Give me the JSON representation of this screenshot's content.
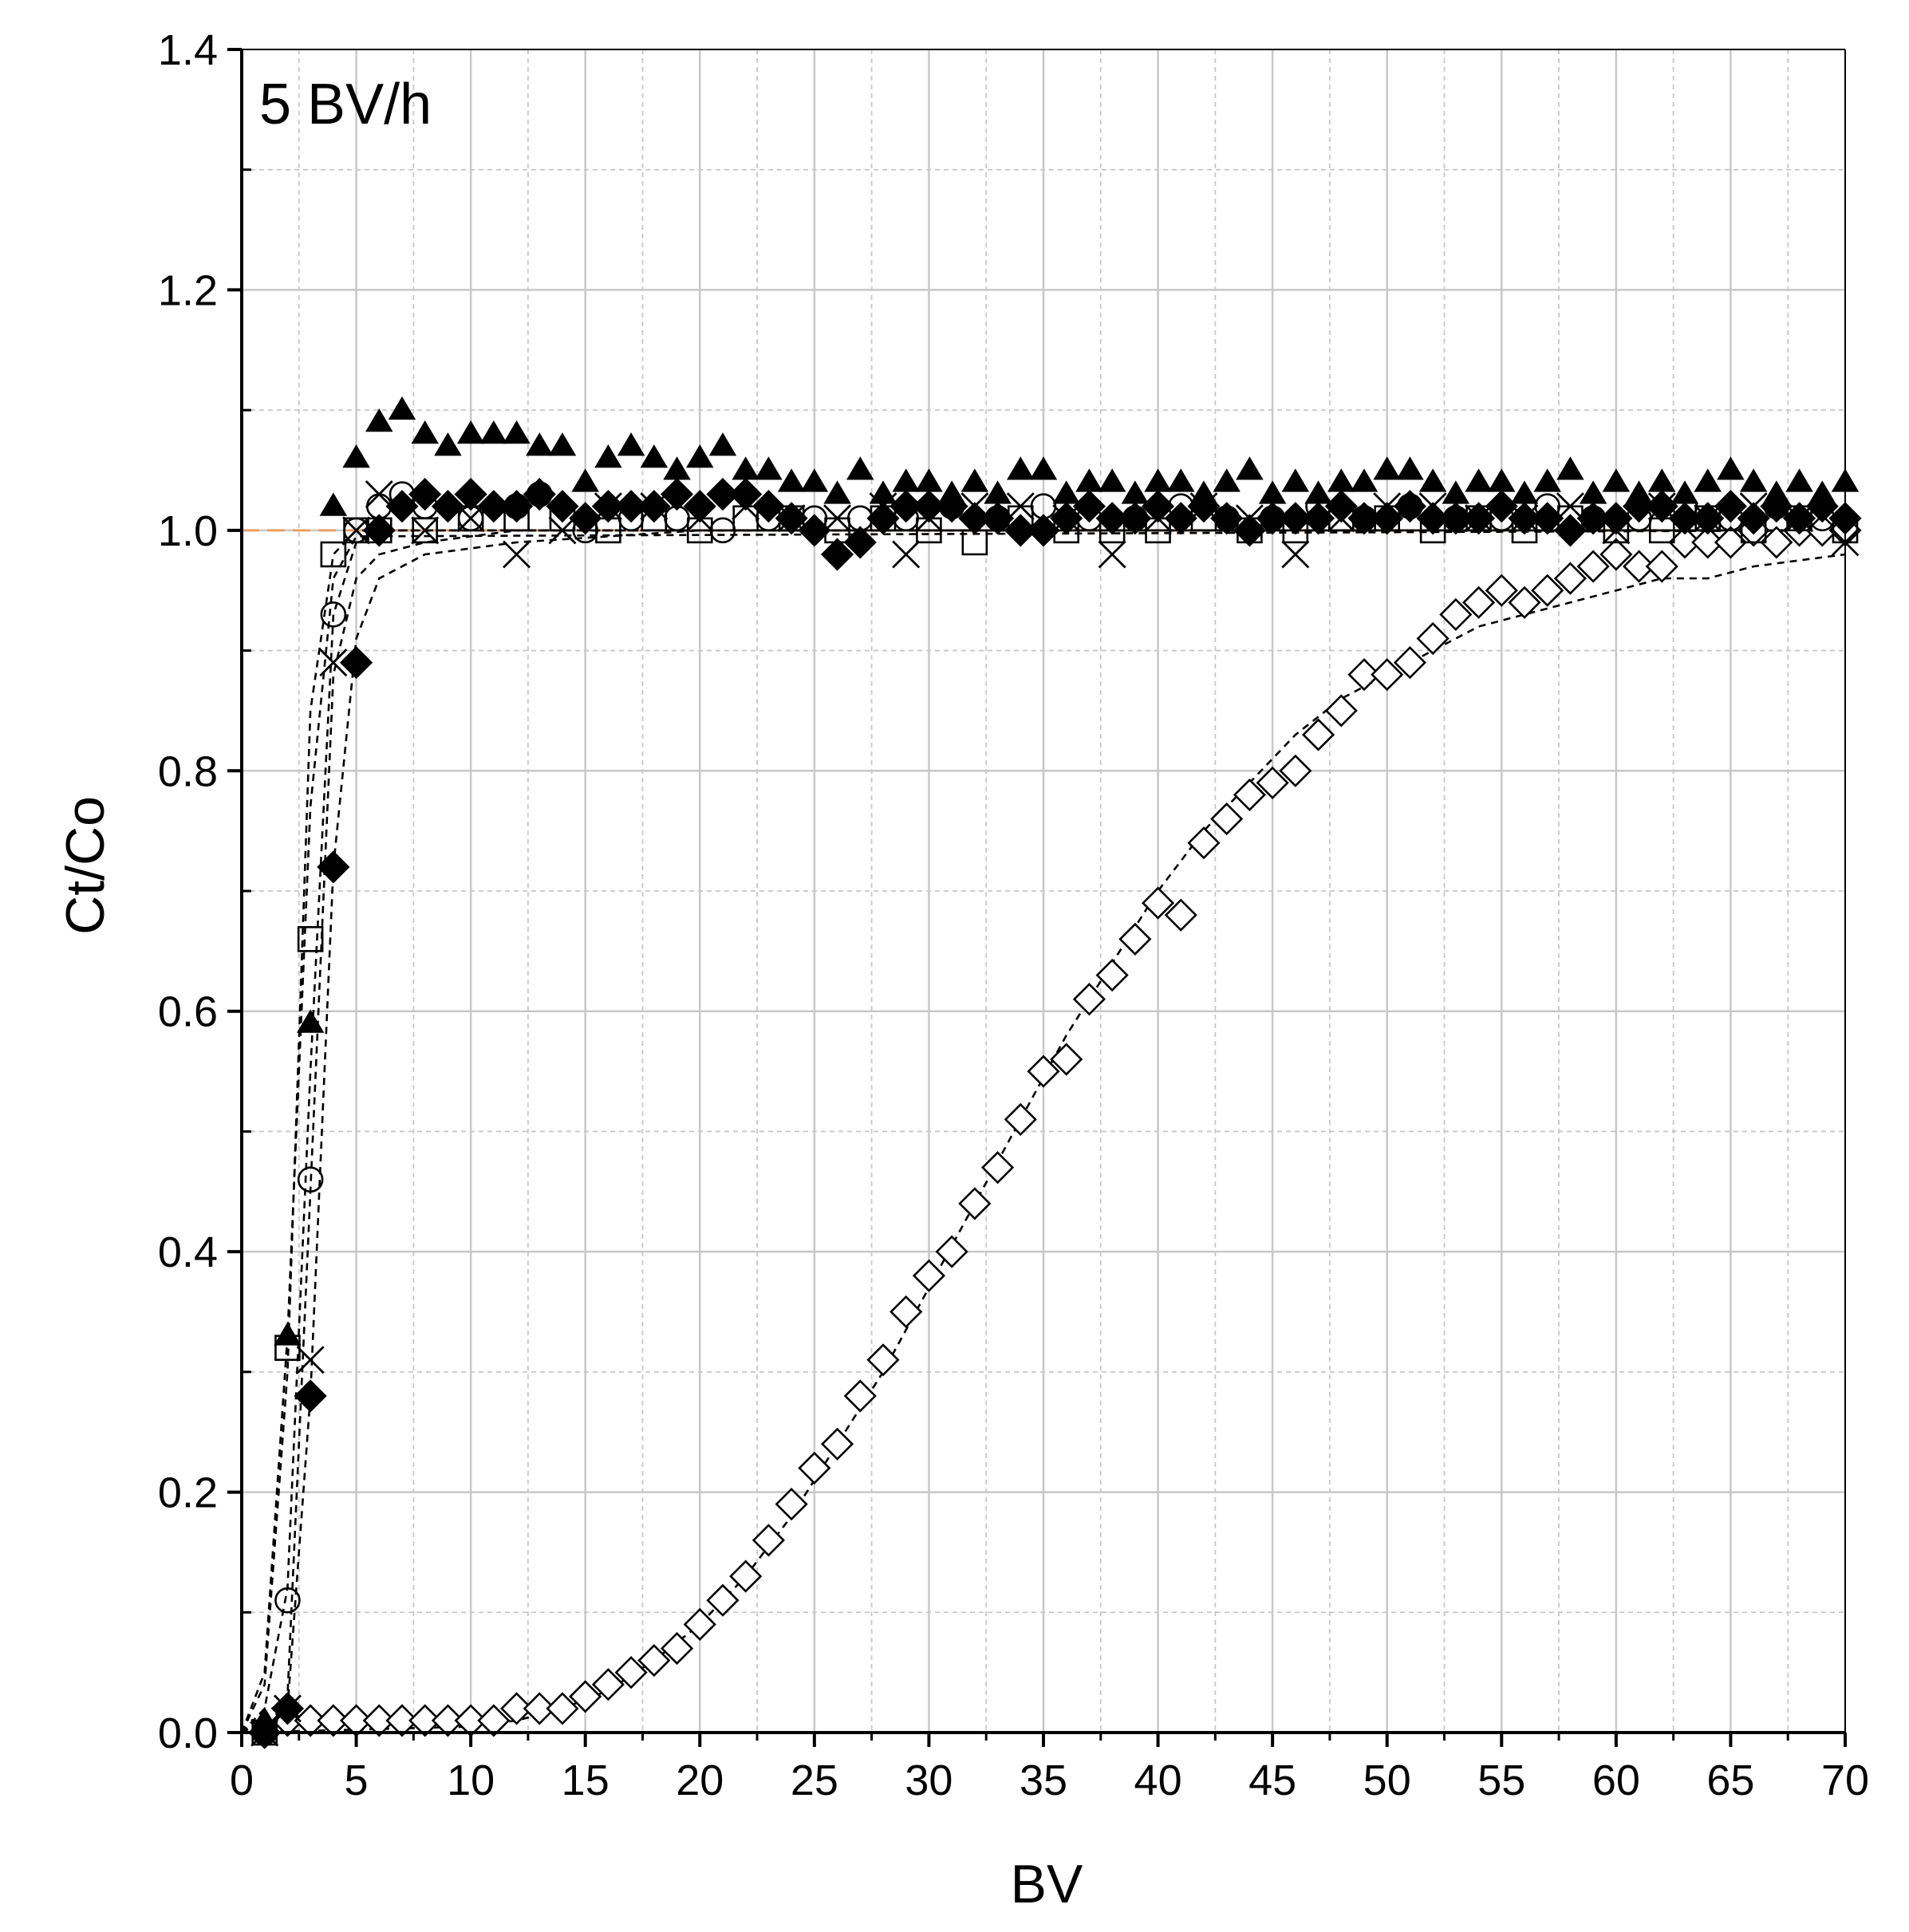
{
  "chart_data": {
    "type": "scatter",
    "annotation": "5 BV/h",
    "xlabel": "BV",
    "ylabel": "Ct/Co",
    "xlim": [
      0,
      70
    ],
    "ylim": [
      0,
      1.4
    ],
    "xticks": [
      "0",
      "5",
      "10",
      "15",
      "20",
      "25",
      "30",
      "35",
      "40",
      "45",
      "50",
      "55",
      "60",
      "65",
      "70"
    ],
    "yticks": [
      "0.0",
      "0.2",
      "0.4",
      "0.6",
      "0.8",
      "1.0",
      "1.2",
      "1.4"
    ],
    "grid": true,
    "reference_line": {
      "y": 1.0,
      "color": "#e8a060"
    },
    "series": [
      {
        "marker": "triangle-filled",
        "x": [
          1,
          2,
          3,
          4,
          5,
          6,
          7,
          8,
          9,
          10,
          11,
          12,
          13,
          14,
          15,
          16,
          17,
          18,
          19,
          20,
          21,
          22,
          23,
          24,
          25,
          26,
          27,
          28,
          29,
          30,
          31,
          32,
          33,
          34,
          35,
          36,
          37,
          38,
          39,
          40,
          41,
          42,
          43,
          44,
          45,
          46,
          47,
          48,
          49,
          50,
          51,
          52,
          53,
          54,
          55,
          56,
          57,
          58,
          59,
          60,
          61,
          62,
          63,
          64,
          65,
          66,
          67,
          68,
          69,
          70
        ],
        "y": [
          0.01,
          0.33,
          0.59,
          1.02,
          1.06,
          1.09,
          1.1,
          1.08,
          1.07,
          1.08,
          1.08,
          1.08,
          1.07,
          1.07,
          1.04,
          1.06,
          1.07,
          1.06,
          1.05,
          1.06,
          1.07,
          1.05,
          1.05,
          1.04,
          1.04,
          1.03,
          1.05,
          1.03,
          1.04,
          1.04,
          1.03,
          1.04,
          1.03,
          1.05,
          1.05,
          1.03,
          1.04,
          1.04,
          1.03,
          1.04,
          1.04,
          1.03,
          1.04,
          1.05,
          1.03,
          1.04,
          1.03,
          1.04,
          1.04,
          1.05,
          1.05,
          1.04,
          1.03,
          1.04,
          1.04,
          1.03,
          1.04,
          1.05,
          1.03,
          1.04,
          1.03,
          1.04,
          1.03,
          1.04,
          1.05,
          1.04,
          1.03,
          1.04,
          1.03,
          1.04
        ],
        "fit": [
          [
            0,
            0
          ],
          [
            1,
            0.04
          ],
          [
            2,
            0.3
          ],
          [
            3,
            0.85
          ],
          [
            4,
            0.98
          ],
          [
            5,
            1.0
          ],
          [
            70,
            1.0
          ]
        ]
      },
      {
        "marker": "square-open",
        "x": [
          1,
          2,
          3,
          4,
          5,
          6,
          8,
          10,
          12,
          14,
          16,
          18,
          20,
          22,
          24,
          26,
          28,
          30,
          32,
          34,
          36,
          38,
          40,
          42,
          44,
          46,
          48,
          50,
          52,
          54,
          56,
          58,
          60,
          62,
          64,
          66,
          68,
          70
        ],
        "y": [
          0.0,
          0.32,
          0.66,
          0.98,
          1.0,
          1.0,
          1.0,
          1.01,
          1.01,
          1.01,
          1.0,
          1.01,
          1.0,
          1.01,
          1.01,
          1.0,
          1.01,
          1.0,
          0.99,
          1.01,
          1.0,
          1.0,
          1.0,
          1.01,
          1.0,
          1.0,
          1.01,
          1.01,
          1.0,
          1.01,
          1.0,
          1.01,
          1.0,
          1.0,
          1.01,
          1.0,
          1.01,
          1.0
        ],
        "fit": [
          [
            0,
            0
          ],
          [
            1,
            0.05
          ],
          [
            2,
            0.33
          ],
          [
            3,
            0.77
          ],
          [
            4,
            0.96
          ],
          [
            5,
            0.995
          ],
          [
            70,
            1.0
          ]
        ]
      },
      {
        "marker": "circle-open",
        "x": [
          1,
          2,
          3,
          4,
          5,
          6,
          7,
          8,
          10,
          12,
          13,
          15,
          17,
          19,
          21,
          23,
          25,
          27,
          29,
          31,
          33,
          35,
          37,
          39,
          41,
          43,
          45,
          47,
          49,
          51,
          53,
          55,
          57,
          59,
          61,
          63,
          65,
          67,
          69
        ],
        "y": [
          0.0,
          0.11,
          0.46,
          0.93,
          1.0,
          1.02,
          1.03,
          1.02,
          1.01,
          1.02,
          1.03,
          1.0,
          1.01,
          1.01,
          1.0,
          1.01,
          1.01,
          1.01,
          1.01,
          1.02,
          1.01,
          1.02,
          1.01,
          1.01,
          1.02,
          1.01,
          1.01,
          1.02,
          1.01,
          1.02,
          1.01,
          1.01,
          1.02,
          1.01,
          1.01,
          1.02,
          1.01,
          1.02,
          1.01
        ],
        "fit": [
          [
            0,
            0
          ],
          [
            1,
            0.02
          ],
          [
            2,
            0.12
          ],
          [
            3,
            0.55
          ],
          [
            4,
            0.93
          ],
          [
            5,
            0.99
          ],
          [
            6,
            1.0
          ],
          [
            70,
            1.0
          ]
        ]
      },
      {
        "marker": "x",
        "x": [
          1,
          2,
          3,
          4,
          5,
          6,
          8,
          10,
          12,
          14,
          16,
          18,
          20,
          22,
          24,
          26,
          28,
          29,
          30,
          32,
          34,
          36,
          38,
          40,
          42,
          44,
          46,
          48,
          50,
          52,
          54,
          56,
          58,
          60,
          62,
          64,
          66,
          68,
          70
        ],
        "y": [
          0.0,
          0.02,
          0.31,
          0.89,
          1.0,
          1.03,
          1.0,
          1.01,
          0.98,
          1.0,
          1.02,
          1.02,
          1.01,
          1.02,
          1.01,
          1.01,
          1.02,
          0.98,
          1.01,
          1.02,
          1.02,
          1.01,
          0.98,
          1.01,
          1.02,
          1.01,
          0.98,
          1.01,
          1.02,
          1.02,
          1.01,
          1.01,
          1.02,
          1.0,
          1.02,
          1.01,
          1.02,
          1.01,
          0.99
        ],
        "fit": [
          [
            0,
            0
          ],
          [
            2,
            0.03
          ],
          [
            3,
            0.45
          ],
          [
            4,
            0.88
          ],
          [
            5,
            0.96
          ],
          [
            6,
            0.98
          ],
          [
            8,
            0.99
          ],
          [
            12,
            1.0
          ],
          [
            70,
            1.0
          ]
        ]
      },
      {
        "marker": "diamond-filled",
        "x": [
          1,
          2,
          3,
          4,
          5,
          6,
          7,
          8,
          9,
          10,
          11,
          12,
          13,
          14,
          15,
          16,
          17,
          18,
          19,
          20,
          21,
          22,
          23,
          24,
          25,
          26,
          27,
          28,
          29,
          30,
          31,
          32,
          33,
          34,
          35,
          36,
          37,
          38,
          39,
          40,
          41,
          42,
          43,
          44,
          45,
          46,
          47,
          48,
          49,
          50,
          51,
          52,
          53,
          54,
          55,
          56,
          57,
          58,
          59,
          60,
          61,
          62,
          63,
          64,
          65,
          66,
          67,
          68,
          69,
          70
        ],
        "y": [
          0.0,
          0.02,
          0.28,
          0.72,
          0.89,
          1.0,
          1.02,
          1.03,
          1.02,
          1.03,
          1.02,
          1.02,
          1.03,
          1.02,
          1.01,
          1.02,
          1.02,
          1.02,
          1.03,
          1.02,
          1.03,
          1.03,
          1.02,
          1.01,
          1.0,
          0.98,
          0.99,
          1.01,
          1.02,
          1.02,
          1.02,
          1.01,
          1.01,
          1.0,
          1.0,
          1.01,
          1.02,
          1.01,
          1.01,
          1.02,
          1.01,
          1.02,
          1.01,
          1.0,
          1.01,
          1.01,
          1.01,
          1.02,
          1.01,
          1.01,
          1.02,
          1.01,
          1.01,
          1.01,
          1.02,
          1.01,
          1.01,
          1.0,
          1.01,
          1.01,
          1.02,
          1.02,
          1.01,
          1.01,
          1.02,
          1.01,
          1.02,
          1.01,
          1.02,
          1.01
        ],
        "fit": [
          [
            0,
            0
          ],
          [
            2,
            0.02
          ],
          [
            3,
            0.28
          ],
          [
            4,
            0.72
          ],
          [
            5,
            0.91
          ],
          [
            6,
            0.96
          ],
          [
            8,
            0.98
          ],
          [
            12,
            0.99
          ],
          [
            20,
            1.0
          ],
          [
            70,
            1.0
          ]
        ]
      },
      {
        "marker": "diamond-open",
        "x": [
          1,
          2,
          3,
          4,
          5,
          6,
          7,
          8,
          9,
          10,
          11,
          12,
          13,
          14,
          15,
          16,
          17,
          18,
          19,
          20,
          21,
          22,
          23,
          24,
          25,
          26,
          27,
          28,
          29,
          30,
          31,
          32,
          33,
          34,
          35,
          36,
          37,
          38,
          39,
          40,
          41,
          42,
          43,
          44,
          45,
          46,
          47,
          48,
          49,
          50,
          51,
          52,
          53,
          54,
          55,
          56,
          57,
          58,
          59,
          60,
          61,
          62,
          63,
          64,
          65,
          66,
          67,
          68,
          69,
          70
        ],
        "y": [
          0.0,
          0.01,
          0.01,
          0.01,
          0.01,
          0.01,
          0.01,
          0.01,
          0.01,
          0.01,
          0.01,
          0.02,
          0.02,
          0.02,
          0.03,
          0.04,
          0.05,
          0.06,
          0.07,
          0.09,
          0.11,
          0.13,
          0.16,
          0.19,
          0.22,
          0.24,
          0.28,
          0.31,
          0.35,
          0.38,
          0.4,
          0.44,
          0.47,
          0.51,
          0.55,
          0.56,
          0.61,
          0.63,
          0.66,
          0.69,
          0.68,
          0.74,
          0.76,
          0.78,
          0.79,
          0.8,
          0.83,
          0.85,
          0.88,
          0.88,
          0.89,
          0.91,
          0.93,
          0.94,
          0.95,
          0.94,
          0.95,
          0.96,
          0.97,
          0.98,
          0.97,
          0.97,
          0.99,
          0.99,
          0.99,
          1.0,
          0.99,
          1.0,
          1.0,
          1.0
        ],
        "fit": [
          [
            0,
            0
          ],
          [
            10,
            0.005
          ],
          [
            12,
            0.01
          ],
          [
            14,
            0.02
          ],
          [
            16,
            0.035
          ],
          [
            18,
            0.06
          ],
          [
            20,
            0.09
          ],
          [
            22,
            0.13
          ],
          [
            24,
            0.18
          ],
          [
            26,
            0.24
          ],
          [
            28,
            0.3
          ],
          [
            30,
            0.37
          ],
          [
            32,
            0.44
          ],
          [
            34,
            0.51
          ],
          [
            36,
            0.58
          ],
          [
            38,
            0.64
          ],
          [
            40,
            0.7
          ],
          [
            42,
            0.75
          ],
          [
            44,
            0.79
          ],
          [
            46,
            0.83
          ],
          [
            48,
            0.86
          ],
          [
            50,
            0.88
          ],
          [
            52,
            0.9
          ],
          [
            54,
            0.92
          ],
          [
            56,
            0.93
          ],
          [
            58,
            0.94
          ],
          [
            60,
            0.95
          ],
          [
            62,
            0.96
          ],
          [
            64,
            0.96
          ],
          [
            66,
            0.97
          ],
          [
            68,
            0.975
          ],
          [
            70,
            0.98
          ]
        ]
      }
    ]
  }
}
